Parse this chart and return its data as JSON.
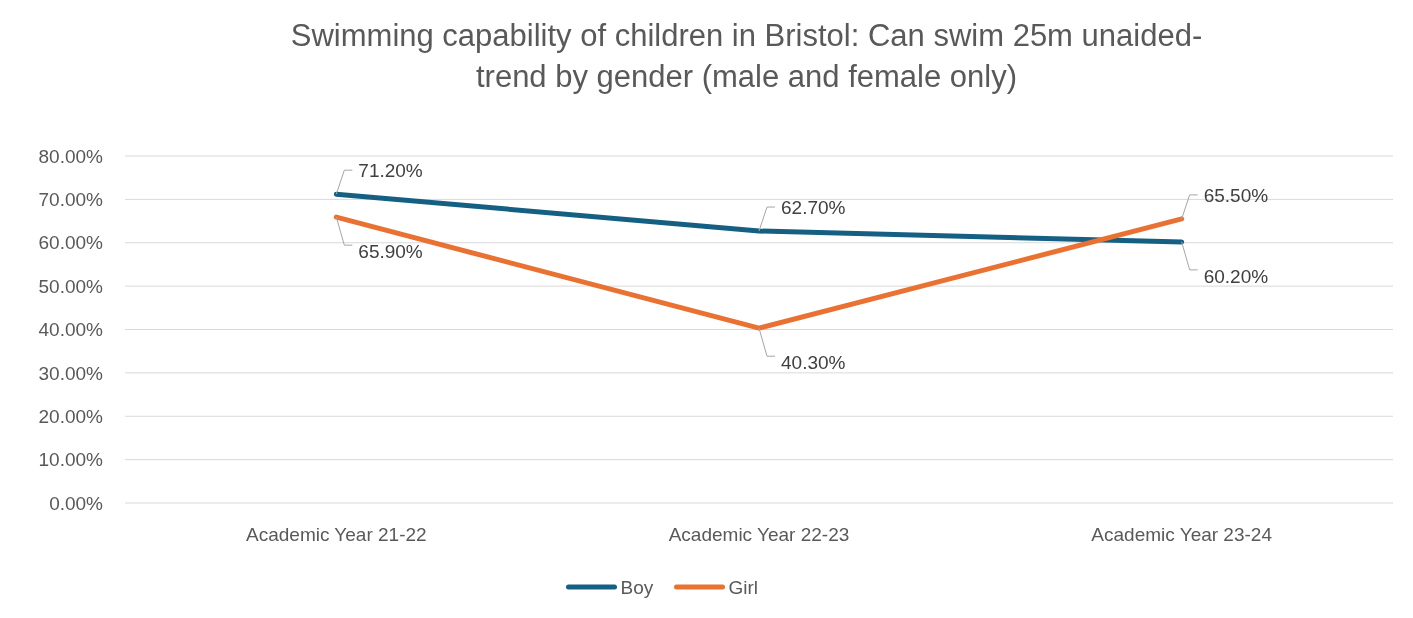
{
  "chart_data": {
    "type": "line",
    "title": "Swimming capability of children in Bristol: Can swim 25m unaided-\ntrend by gender (male and female only)",
    "categories": [
      "Academic Year 21-22",
      "Academic Year 22-23",
      "Academic Year 23-24"
    ],
    "series": [
      {
        "name": "Boy",
        "color": "#156082",
        "values": [
          71.2,
          62.7,
          60.2
        ],
        "value_labels": [
          "71.20%",
          "62.70%",
          "60.20%"
        ]
      },
      {
        "name": "Girl",
        "color": "#e97132",
        "values": [
          65.9,
          40.3,
          65.5
        ],
        "value_labels": [
          "65.90%",
          "40.30%",
          "65.50%"
        ]
      }
    ],
    "ylim": [
      0,
      80
    ],
    "yticks": [
      {
        "value": 0,
        "label": "0.00%"
      },
      {
        "value": 10,
        "label": "10.00%"
      },
      {
        "value": 20,
        "label": "20.00%"
      },
      {
        "value": 30,
        "label": "30.00%"
      },
      {
        "value": 40,
        "label": "40.00%"
      },
      {
        "value": 50,
        "label": "50.00%"
      },
      {
        "value": 60,
        "label": "60.00%"
      },
      {
        "value": 70,
        "label": "70.00%"
      },
      {
        "value": 80,
        "label": "80.00%"
      }
    ],
    "grid": "y",
    "legend": "bottom",
    "marker": "none",
    "line_style": "solid"
  }
}
